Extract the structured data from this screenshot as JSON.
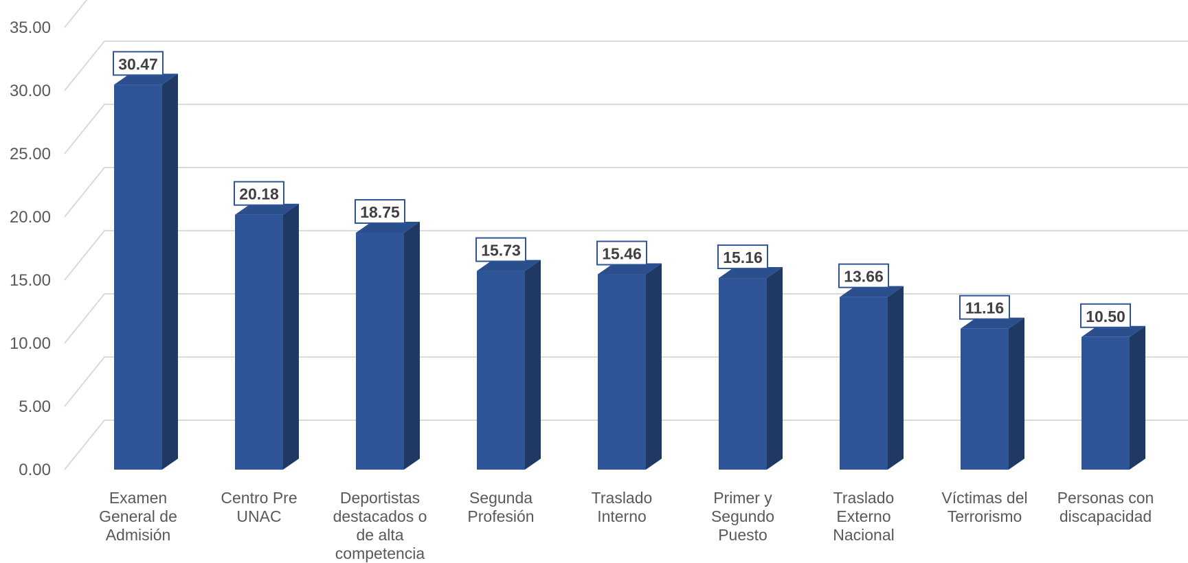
{
  "chart_data": {
    "type": "bar",
    "style": "3d-column",
    "categories": [
      [
        "Examen",
        "General de",
        "Admisión"
      ],
      [
        "Centro Pre",
        "UNAC"
      ],
      [
        "Deportistas",
        "destacados o",
        "de alta",
        "competencia"
      ],
      [
        "Segunda",
        "Profesión"
      ],
      [
        "Traslado",
        "Interno"
      ],
      [
        "Primer y",
        "Segundo",
        "Puesto"
      ],
      [
        "Traslado",
        "Externo",
        "Nacional"
      ],
      [
        "Víctimas del",
        "Terrorismo"
      ],
      [
        "Personas con",
        "discapacidad"
      ]
    ],
    "values": [
      30.47,
      20.18,
      18.75,
      15.73,
      15.46,
      15.16,
      13.66,
      11.16,
      10.5
    ],
    "data_labels": [
      "30.47",
      "20.18",
      "18.75",
      "15.73",
      "15.46",
      "15.16",
      "13.66",
      "11.16",
      "10.50"
    ],
    "y_ticks": [
      "0.00",
      "5.00",
      "10.00",
      "15.00",
      "20.00",
      "25.00",
      "30.00",
      "35.00"
    ],
    "ylim": [
      0,
      35
    ],
    "grid": true,
    "legend": "none",
    "colors": {
      "bar_front": "#2e5597",
      "bar_side": "#1f3864",
      "bar_top": "#2b4f8c",
      "label_border": "#2f5597",
      "grid": "#d9d9d9",
      "axis_text": "#595959"
    }
  }
}
